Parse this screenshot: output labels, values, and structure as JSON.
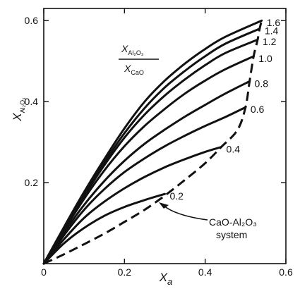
{
  "chart_data": {
    "type": "line",
    "xlabel": "X",
    "xlabel_sub": "a",
    "ylabel": "X",
    "ylabel_sub": "Al₂O₃",
    "xlim": [
      0,
      0.6
    ],
    "ylim": [
      0,
      0.63
    ],
    "x_ticks": [
      {
        "value": 0,
        "label": "0"
      },
      {
        "value": 0.2,
        "label": "0.2"
      },
      {
        "value": 0.4,
        "label": "0.4"
      },
      {
        "value": 0.6,
        "label": "0.6"
      }
    ],
    "y_ticks": [
      {
        "value": 0.2,
        "label": "0.2"
      },
      {
        "value": 0.4,
        "label": "0.4"
      },
      {
        "value": 0.6,
        "label": "0.6"
      }
    ],
    "grid": false,
    "ratio_label": {
      "numerator": "X",
      "numerator_sub": "Al₂O₃",
      "denominator": "X",
      "denominator_sub": "CaO"
    },
    "series": [
      {
        "name": "0.2",
        "points": [
          [
            0,
            0
          ],
          [
            0.05,
            0.05
          ],
          [
            0.1,
            0.088
          ],
          [
            0.15,
            0.118
          ],
          [
            0.2,
            0.14
          ],
          [
            0.25,
            0.157
          ],
          [
            0.3,
            0.172
          ]
        ]
      },
      {
        "name": "0.4",
        "points": [
          [
            0,
            0
          ],
          [
            0.05,
            0.06
          ],
          [
            0.1,
            0.113
          ],
          [
            0.15,
            0.153
          ],
          [
            0.2,
            0.186
          ],
          [
            0.25,
            0.214
          ],
          [
            0.3,
            0.238
          ],
          [
            0.35,
            0.258
          ],
          [
            0.4,
            0.276
          ],
          [
            0.44,
            0.288
          ]
        ]
      },
      {
        "name": "0.6",
        "points": [
          [
            0,
            0
          ],
          [
            0.05,
            0.07
          ],
          [
            0.1,
            0.133
          ],
          [
            0.15,
            0.184
          ],
          [
            0.2,
            0.226
          ],
          [
            0.25,
            0.26
          ],
          [
            0.3,
            0.29
          ],
          [
            0.35,
            0.316
          ],
          [
            0.4,
            0.34
          ],
          [
            0.45,
            0.362
          ],
          [
            0.5,
            0.386
          ]
        ]
      },
      {
        "name": "0.8",
        "points": [
          [
            0,
            0
          ],
          [
            0.05,
            0.076
          ],
          [
            0.1,
            0.145
          ],
          [
            0.15,
            0.204
          ],
          [
            0.2,
            0.254
          ],
          [
            0.25,
            0.296
          ],
          [
            0.3,
            0.331
          ],
          [
            0.35,
            0.363
          ],
          [
            0.4,
            0.392
          ],
          [
            0.45,
            0.42
          ],
          [
            0.51,
            0.45
          ]
        ]
      },
      {
        "name": "1.0",
        "points": [
          [
            0,
            0
          ],
          [
            0.05,
            0.082
          ],
          [
            0.1,
            0.16
          ],
          [
            0.15,
            0.23
          ],
          [
            0.2,
            0.29
          ],
          [
            0.25,
            0.34
          ],
          [
            0.3,
            0.382
          ],
          [
            0.35,
            0.42
          ],
          [
            0.4,
            0.452
          ],
          [
            0.45,
            0.48
          ],
          [
            0.52,
            0.512
          ]
        ]
      },
      {
        "name": "1.2",
        "points": [
          [
            0,
            0
          ],
          [
            0.05,
            0.085
          ],
          [
            0.1,
            0.167
          ],
          [
            0.15,
            0.243
          ],
          [
            0.2,
            0.311
          ],
          [
            0.25,
            0.368
          ],
          [
            0.3,
            0.415
          ],
          [
            0.35,
            0.455
          ],
          [
            0.4,
            0.49
          ],
          [
            0.45,
            0.52
          ],
          [
            0.53,
            0.553
          ]
        ]
      },
      {
        "name": "1.4",
        "points": [
          [
            0,
            0
          ],
          [
            0.05,
            0.088
          ],
          [
            0.1,
            0.172
          ],
          [
            0.15,
            0.25
          ],
          [
            0.2,
            0.322
          ],
          [
            0.25,
            0.384
          ],
          [
            0.3,
            0.435
          ],
          [
            0.35,
            0.476
          ],
          [
            0.4,
            0.512
          ],
          [
            0.45,
            0.543
          ],
          [
            0.535,
            0.58
          ]
        ]
      },
      {
        "name": "1.6",
        "points": [
          [
            0,
            0
          ],
          [
            0.05,
            0.09
          ],
          [
            0.1,
            0.177
          ],
          [
            0.15,
            0.258
          ],
          [
            0.2,
            0.334
          ],
          [
            0.25,
            0.4
          ],
          [
            0.3,
            0.452
          ],
          [
            0.35,
            0.494
          ],
          [
            0.4,
            0.53
          ],
          [
            0.45,
            0.56
          ],
          [
            0.54,
            0.6
          ]
        ]
      }
    ],
    "boundary": {
      "style": "dashed",
      "label_lines": [
        "CaO-Al₂O₃",
        "system"
      ],
      "points": [
        [
          0,
          0
        ],
        [
          0.05,
          0.023
        ],
        [
          0.1,
          0.048
        ],
        [
          0.15,
          0.074
        ],
        [
          0.2,
          0.103
        ],
        [
          0.25,
          0.133
        ],
        [
          0.3,
          0.168
        ],
        [
          0.35,
          0.207
        ],
        [
          0.4,
          0.248
        ],
        [
          0.44,
          0.288
        ],
        [
          0.48,
          0.33
        ],
        [
          0.5,
          0.386
        ],
        [
          0.51,
          0.45
        ],
        [
          0.52,
          0.512
        ],
        [
          0.53,
          0.553
        ],
        [
          0.535,
          0.58
        ],
        [
          0.54,
          0.6
        ]
      ]
    }
  }
}
